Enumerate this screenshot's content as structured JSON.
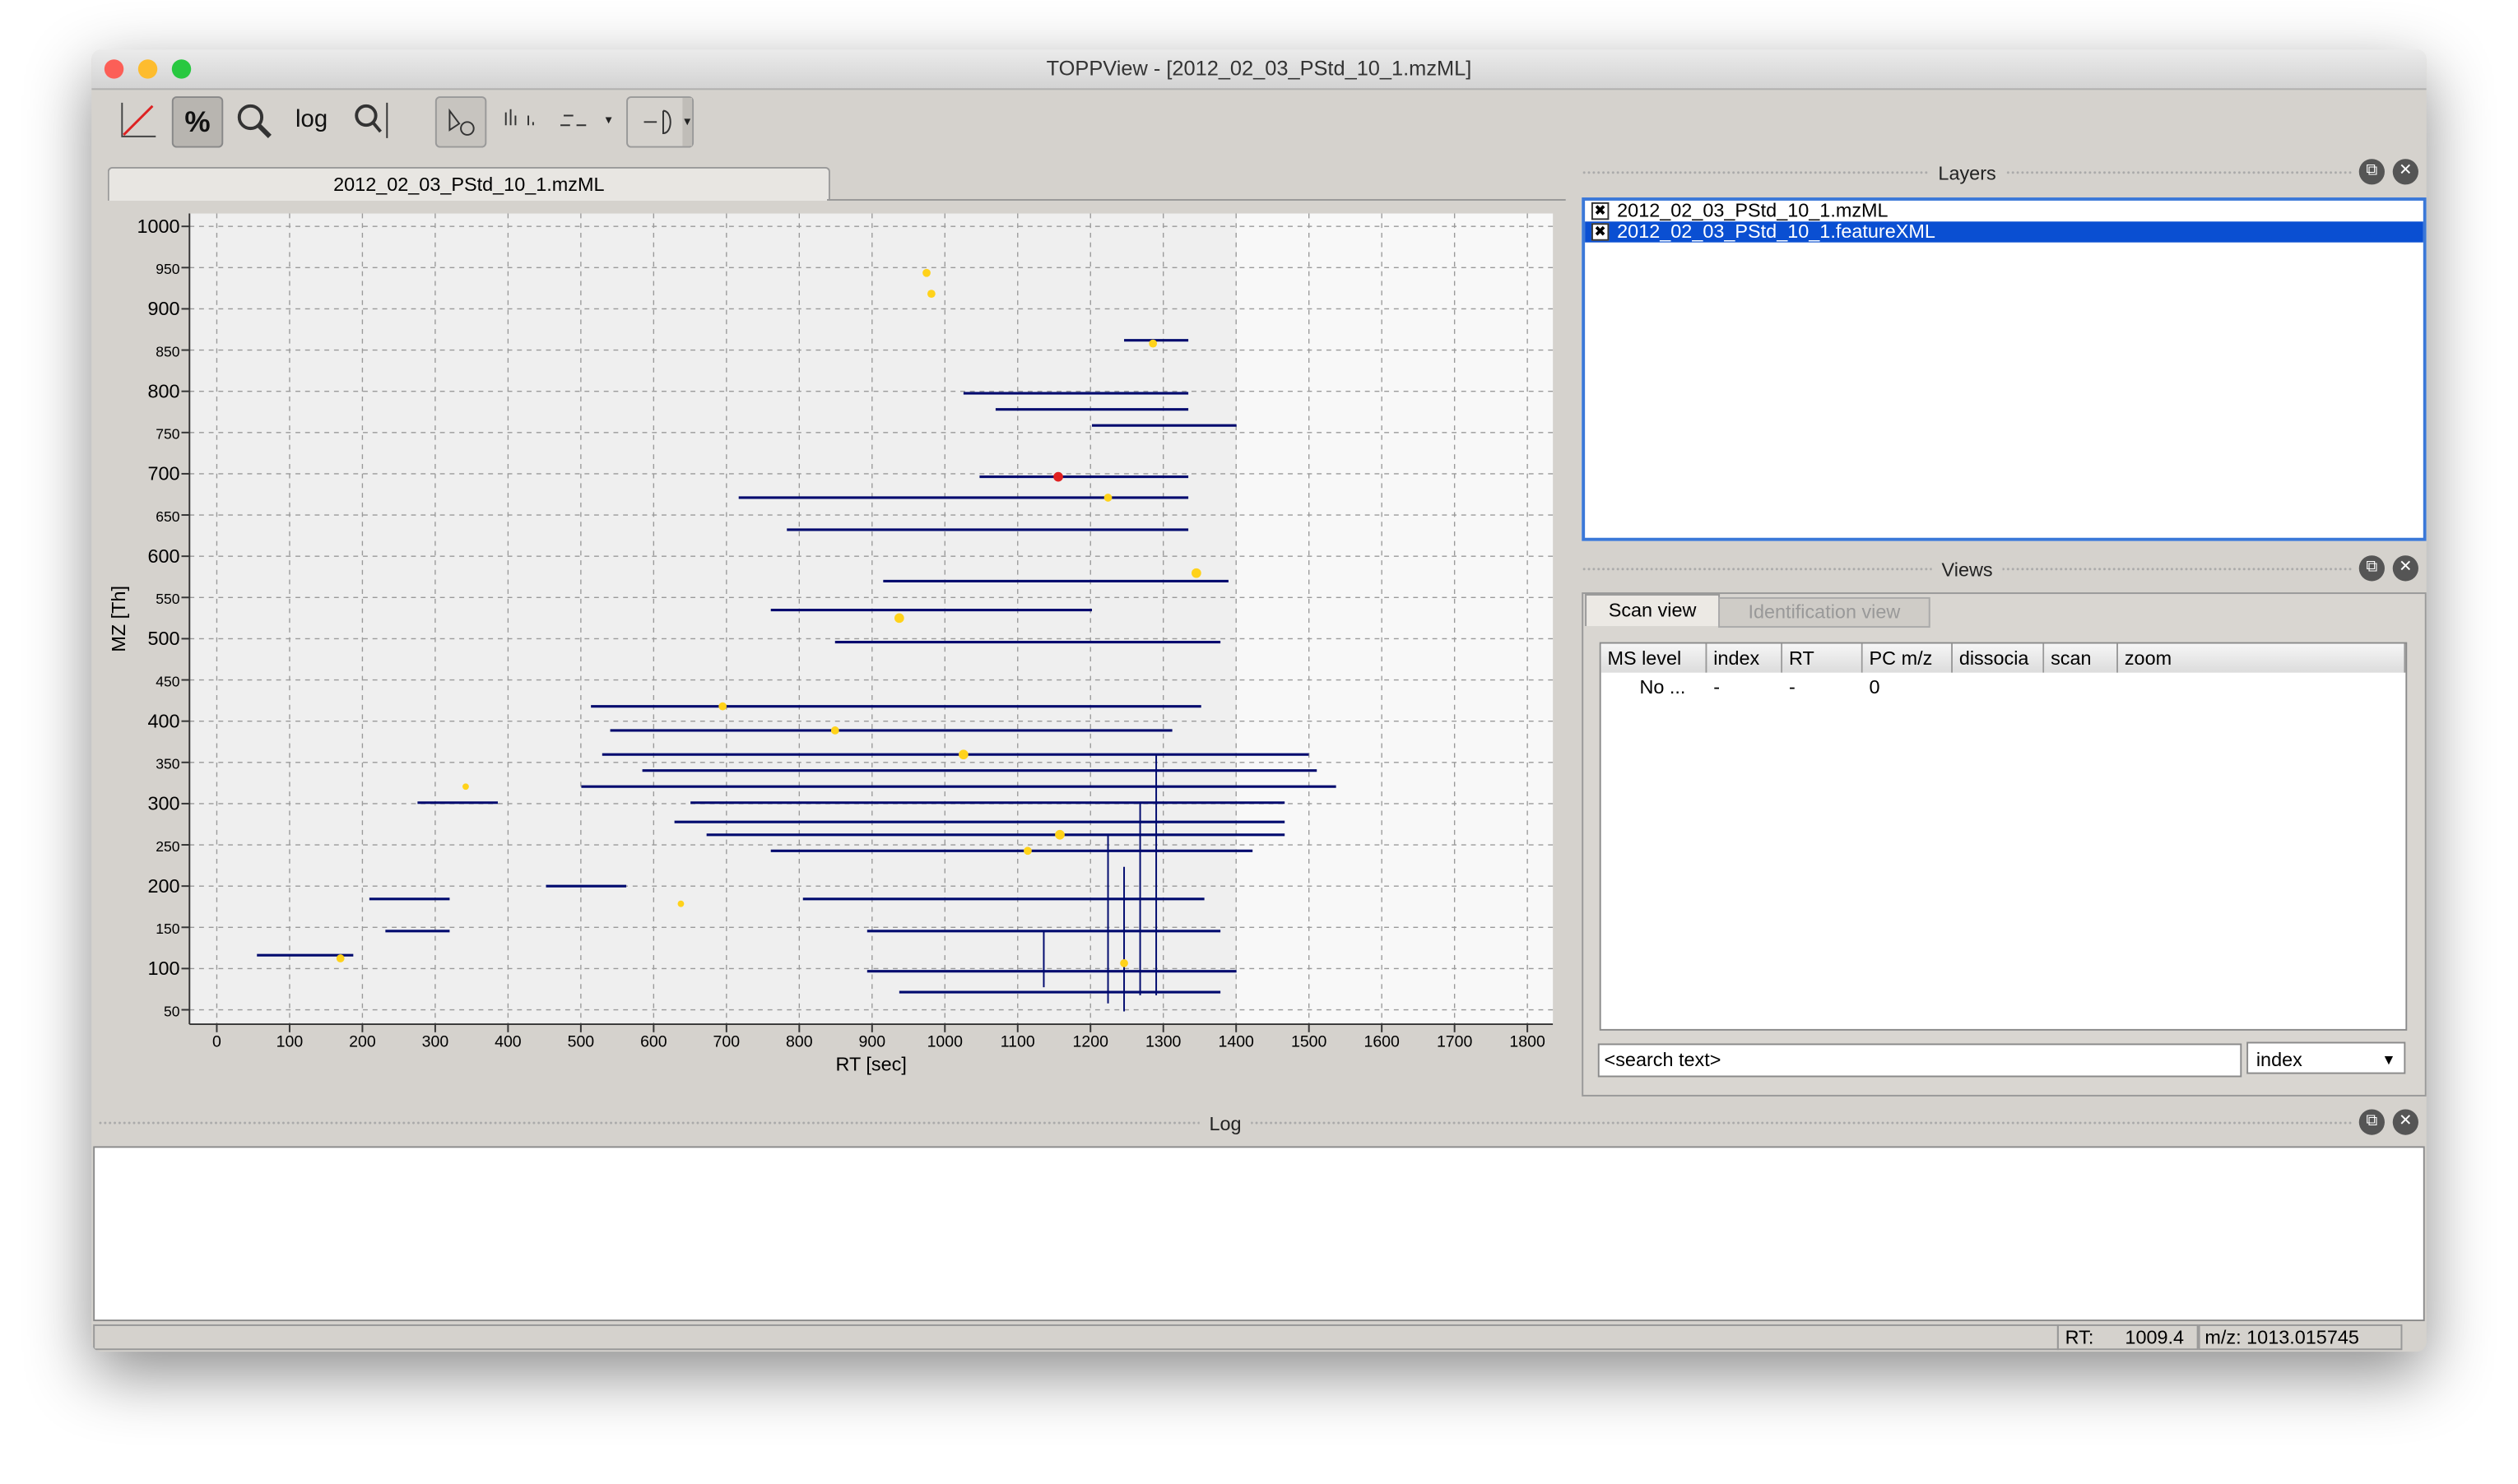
{
  "window": {
    "title": "TOPPView - [2012_02_03_PStd_10_1.mzML]"
  },
  "toolbar": {
    "log_button": "log"
  },
  "tab": {
    "label": "2012_02_03_PStd_10_1.mzML"
  },
  "plot": {
    "x_label": "RT [sec]",
    "y_label": "MZ [Th]",
    "xlim": [
      -37.5,
      1835
    ],
    "ylim": [
      32.5,
      1015.6
    ],
    "xticks": [
      0,
      100,
      200,
      300,
      400,
      500,
      600,
      700,
      800,
      900,
      1000,
      1100,
      1200,
      1300,
      1400,
      1500,
      1600,
      1700,
      1800
    ],
    "yticks": [
      50,
      100,
      150,
      200,
      250,
      300,
      350,
      400,
      450,
      500,
      550,
      600,
      650,
      700,
      750,
      800,
      850,
      900,
      950,
      1000
    ],
    "grid": true
  },
  "layers": {
    "title": "Layers",
    "items": [
      "2012_02_03_PStd_10_1.mzML",
      "2012_02_03_PStd_10_1.featureXML"
    ],
    "selected": 1
  },
  "views": {
    "title": "Views",
    "tabs": [
      "Scan view",
      "Identification view"
    ],
    "columns": [
      "MS level",
      "index",
      "RT",
      "PC m/z",
      "dissocia",
      "scan",
      "zoom"
    ],
    "rows": [
      [
        "No ...",
        "-",
        "-",
        "0"
      ]
    ],
    "search_placeholder": "<search text>",
    "search_field": "index"
  },
  "log": {
    "title": "Log"
  },
  "status": {
    "rt_label": "RT:",
    "rt": "1009.4",
    "mz": "m/z: 1013.015745"
  }
}
